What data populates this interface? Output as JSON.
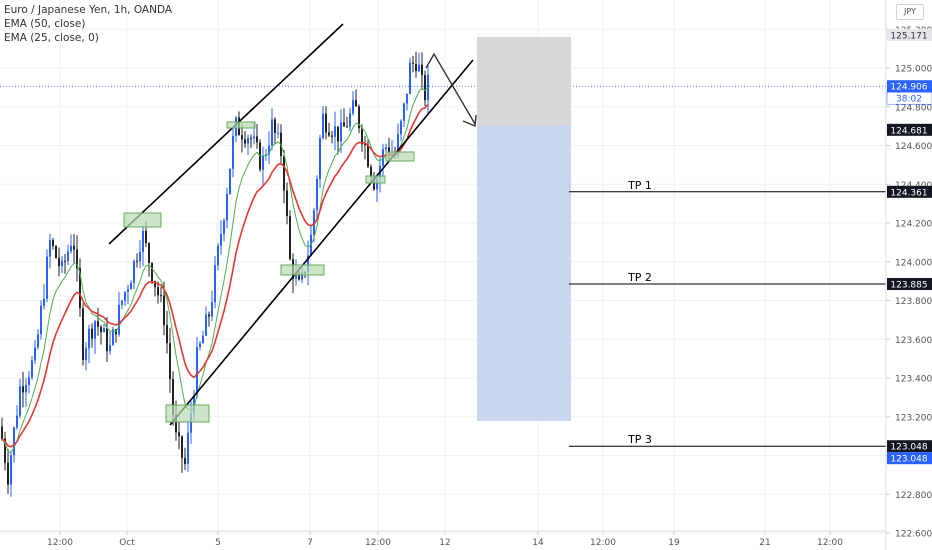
{
  "chart_data": {
    "type": "candlestick",
    "title": "Euro / Japanese Yen, 1h, OANDA",
    "currency": "JPY",
    "indicators": [
      {
        "name": "EMA (50, close)",
        "color": "#4caf50"
      },
      {
        "name": "EMA (25, close, 0)",
        "color": "#e53935"
      }
    ],
    "ylim": [
      122.5,
      125.3
    ],
    "y_ticks": [
      "125.200",
      "125.000",
      "124.800",
      "124.600",
      "124.400",
      "124.200",
      "124.000",
      "123.800",
      "123.600",
      "123.400",
      "123.200",
      "123.000",
      "122.800",
      "122.600"
    ],
    "x_ticks": [
      "12:00",
      "Oct",
      "5",
      "7",
      "12:00",
      "12",
      "14",
      "12:00",
      "19",
      "21",
      "12:00"
    ],
    "price_labels": [
      {
        "value": 125.171,
        "label": "125.171",
        "style": "gray"
      },
      {
        "value": 124.906,
        "label": "124.906",
        "style": "blue"
      },
      {
        "value": 124.681,
        "label": "124.681",
        "style": "dark"
      },
      {
        "value": 124.361,
        "label": "124.361",
        "style": "dark"
      },
      {
        "value": 123.885,
        "label": "123.885",
        "style": "dark"
      },
      {
        "value": 123.048,
        "label": "123.048",
        "style": "dark"
      },
      {
        "value": 123.048,
        "label": "123.048",
        "style": "blue"
      }
    ],
    "countdown": "38:02",
    "take_profits": [
      {
        "label": "TP 1",
        "value": 124.361
      },
      {
        "label": "TP 2",
        "value": 123.885
      },
      {
        "label": "TP 3",
        "value": 123.048
      }
    ],
    "position": {
      "type": "short",
      "entry": 124.681,
      "stop": 125.171,
      "target": 123.048
    },
    "colors": {
      "up": "#2962ff",
      "down": "#222222",
      "stop_zone": "#d4d4d4",
      "target_zone": "#c5d4ef"
    }
  }
}
